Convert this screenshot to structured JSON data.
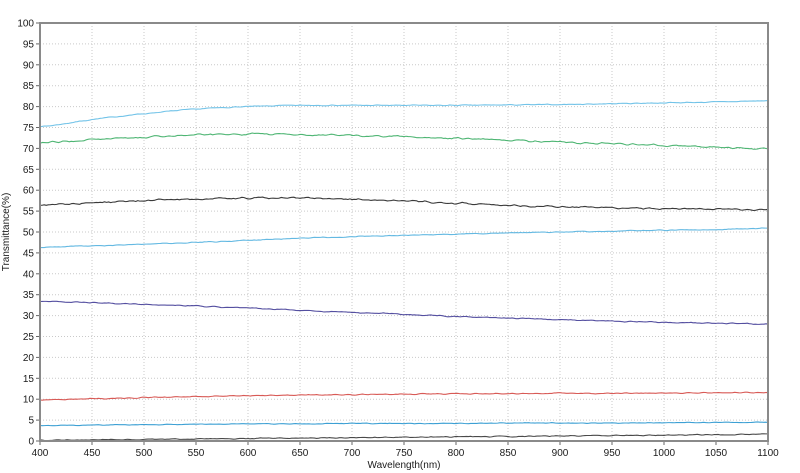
{
  "chart_data": {
    "type": "line",
    "title": "",
    "xlabel": "Wavelength(nm)",
    "ylabel": "Transmittance(%)",
    "xlim": [
      400,
      1100
    ],
    "ylim": [
      0,
      100
    ],
    "x_ticks": [
      400,
      450,
      500,
      550,
      600,
      650,
      700,
      750,
      800,
      850,
      900,
      950,
      1000,
      1050,
      1100
    ],
    "y_ticks": [
      0,
      5,
      10,
      15,
      20,
      25,
      30,
      35,
      40,
      45,
      50,
      55,
      60,
      65,
      70,
      75,
      80,
      85,
      90,
      95,
      100
    ],
    "grid": "dotted both axes at every tick",
    "legend_position": "none",
    "background": "#ffffff",
    "frame_color": "#8a8a8a",
    "grid_color": "#c9c9c9",
    "text_color": "#1a1a1a",
    "x": [
      400,
      450,
      500,
      550,
      600,
      650,
      700,
      750,
      800,
      850,
      900,
      950,
      1000,
      1050,
      1100
    ],
    "series": [
      {
        "name": "curve-light-blue-top",
        "color": "#72c3e8",
        "noise": 0.08,
        "values": [
          75.2,
          76.9,
          78.3,
          79.4,
          80.0,
          80.3,
          80.3,
          80.3,
          80.3,
          80.4,
          80.5,
          80.7,
          80.9,
          81.1,
          81.4
        ]
      },
      {
        "name": "curve-green",
        "color": "#4eb573",
        "noise": 0.18,
        "values": [
          71.4,
          72.1,
          72.7,
          73.2,
          73.4,
          73.3,
          73.1,
          72.8,
          72.4,
          72.0,
          71.5,
          71.1,
          70.7,
          70.3,
          69.9
        ]
      },
      {
        "name": "curve-dark-gray-mid",
        "color": "#3a3a3a",
        "noise": 0.16,
        "values": [
          56.4,
          56.9,
          57.5,
          57.9,
          58.1,
          58.1,
          57.8,
          57.4,
          56.9,
          56.4,
          56.0,
          55.8,
          55.6,
          55.5,
          55.4
        ]
      },
      {
        "name": "curve-blue-mid",
        "color": "#64b9e2",
        "noise": 0.08,
        "values": [
          46.3,
          46.7,
          47.1,
          47.5,
          48.0,
          48.5,
          48.9,
          49.2,
          49.5,
          49.8,
          50.0,
          50.2,
          50.4,
          50.6,
          50.9
        ]
      },
      {
        "name": "curve-purple",
        "color": "#544fa0",
        "noise": 0.1,
        "values": [
          33.5,
          33.1,
          32.7,
          32.3,
          31.8,
          31.3,
          30.8,
          30.3,
          29.8,
          29.4,
          29.0,
          28.7,
          28.4,
          28.2,
          28.0
        ]
      },
      {
        "name": "curve-red",
        "color": "#d85a56",
        "noise": 0.09,
        "values": [
          9.8,
          10.1,
          10.4,
          10.6,
          10.8,
          11.0,
          11.1,
          11.2,
          11.3,
          11.3,
          11.4,
          11.4,
          11.5,
          11.5,
          11.6
        ]
      },
      {
        "name": "curve-cyan-low",
        "color": "#3da0d4",
        "noise": 0.06,
        "values": [
          3.7,
          3.8,
          3.9,
          4.0,
          4.1,
          4.1,
          4.2,
          4.2,
          4.2,
          4.3,
          4.3,
          4.3,
          4.4,
          4.4,
          4.5
        ]
      },
      {
        "name": "curve-dark-low",
        "color": "#4a4a4a",
        "noise": 0.09,
        "values": [
          0.2,
          0.3,
          0.4,
          0.5,
          0.6,
          0.7,
          0.8,
          0.9,
          1.0,
          1.1,
          1.2,
          1.3,
          1.4,
          1.5,
          1.6
        ]
      }
    ]
  }
}
